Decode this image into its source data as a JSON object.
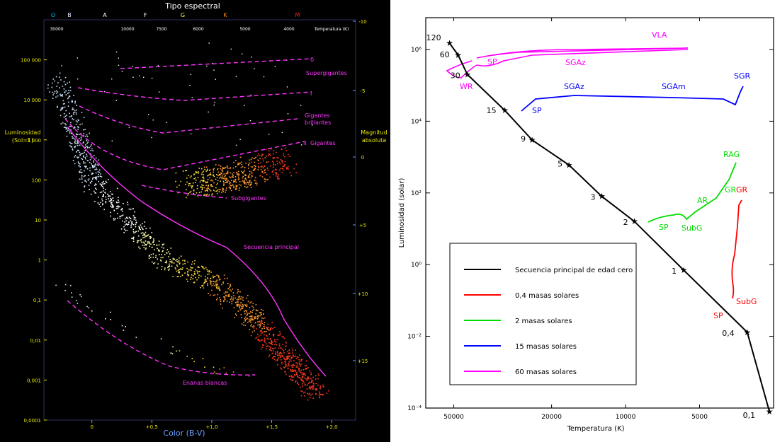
{
  "hr_diagram": {
    "title": "Tipo espectral",
    "spectral_classes": [
      {
        "label": "O",
        "color": "#00bfff"
      },
      {
        "label": "B",
        "color": "#e0e0ff"
      },
      {
        "label": "A",
        "color": "#ffffff"
      },
      {
        "label": "F",
        "color": "#ffffff"
      },
      {
        "label": "G",
        "color": "#ffff40"
      },
      {
        "label": "K",
        "color": "#ff9020"
      },
      {
        "label": "M",
        "color": "#ff2020"
      }
    ],
    "top_temperatures": [
      "30000",
      "10000",
      "7500",
      "6000",
      "5000",
      "4000",
      "3000"
    ],
    "top_temperature_label": "Temperatura (K)",
    "y_left_label_1": "Luminosidad",
    "y_left_label_2": "(Sol=1)",
    "y_left_ticks": [
      "100 000",
      "10 000",
      "1 000",
      "100",
      "10",
      "1",
      "0,1",
      "0,01",
      "0,001",
      "0,0001"
    ],
    "y_right_label_1": "Magnitud",
    "y_right_label_2": "absoluta",
    "y_right_ticks": [
      "-10",
      "-5",
      "0",
      "+5",
      "+10",
      "+15"
    ],
    "x_ticks": [
      "0",
      "+0,5",
      "+1,0",
      "+1,5",
      "+2,0"
    ],
    "x_label": "Color (B-V)",
    "region_labels": {
      "supergiants_0": "0",
      "supergiants_text": "Supergigantes",
      "bright_giants_I": "I",
      "bright_giants_text_1": "Gigantes",
      "bright_giants_text_2": "brillantes",
      "giants_II": "II",
      "giants_text": "Gigantes",
      "subgiants": "Subgigantes",
      "main_sequence": "Secuencia principal",
      "white_dwarfs": "Enanas blancas"
    }
  },
  "chart_data": [
    {
      "type": "scatter",
      "title": "Tipo espectral",
      "xlabel": "Color (B-V)",
      "ylabel": "Luminosidad (Sol=1)",
      "xlim": [
        -0.4,
        2.2
      ],
      "ylim": [
        0.0001,
        1000000
      ],
      "y_scale": "log",
      "series": [
        {
          "name": "Secuencia principal",
          "points": [
            [
              -0.3,
              30000
            ],
            [
              -0.1,
              1000
            ],
            [
              0.0,
              100
            ],
            [
              0.3,
              10
            ],
            [
              0.6,
              1
            ],
            [
              1.0,
              0.3
            ],
            [
              1.3,
              0.05
            ],
            [
              1.5,
              0.01
            ],
            [
              1.7,
              0.002
            ],
            [
              1.9,
              0.0004
            ]
          ]
        },
        {
          "name": "Gigantes",
          "points": [
            [
              0.8,
              80
            ],
            [
              1.0,
              100
            ],
            [
              1.2,
              120
            ],
            [
              1.4,
              200
            ],
            [
              1.6,
              300
            ]
          ]
        },
        {
          "name": "Enanas blancas",
          "points": [
            [
              -0.3,
              0.3
            ],
            [
              0.0,
              0.06
            ],
            [
              0.5,
              0.01
            ],
            [
              1.0,
              0.002
            ],
            [
              1.3,
              0.001
            ]
          ]
        }
      ]
    },
    {
      "type": "line",
      "title": "",
      "xlabel": "Temperatura (K)",
      "ylabel": "Luminosidad (solar)",
      "x_scale": "log",
      "y_scale": "log",
      "xlim": [
        65000,
        2500
      ],
      "ylim": [
        0.0001,
        1000000
      ],
      "x_ticks": [
        "50000",
        "20000",
        "10000",
        "5000"
      ],
      "y_ticks": [
        "10⁶",
        "10⁴",
        "10²",
        "10⁰",
        "10⁻²",
        "10⁻⁴"
      ],
      "legend_position": "bottom-left",
      "legend": [
        {
          "name": "Secuencia principal de edad cero",
          "color": "#000000"
        },
        {
          "name": "0,4 masas solares",
          "color": "#ff0000"
        },
        {
          "name": "2 masas solares",
          "color": "#00dd00"
        },
        {
          "name": "15 masas solares",
          "color": "#0000ff"
        },
        {
          "name": "60 masas solares",
          "color": "#ff00ff"
        }
      ],
      "zams_star_labels": [
        {
          "label": "120",
          "T": 52000,
          "L": 1500000
        },
        {
          "label": "60",
          "T": 48000,
          "L": 700000
        },
        {
          "label": "30",
          "T": 44000,
          "L": 200000
        },
        {
          "label": "15",
          "T": 31000,
          "L": 20000
        },
        {
          "label": "9",
          "T": 24000,
          "L": 3000
        },
        {
          "label": "5",
          "T": 17000,
          "L": 600
        },
        {
          "label": "3",
          "T": 12500,
          "L": 80
        },
        {
          "label": "2",
          "T": 9200,
          "L": 16
        },
        {
          "label": "1",
          "T": 5800,
          "L": 0.7
        },
        {
          "label": "0,4",
          "T": 3200,
          "L": 0.013
        },
        {
          "label": "0,1",
          "T": 2600,
          "L": 8e-05
        }
      ],
      "phase_labels": {
        "magenta": [
          "VLA",
          "SP",
          "SGAz",
          "WR"
        ],
        "blue": [
          "SGAz",
          "SGAm",
          "SGR",
          "SP"
        ],
        "green": [
          "RAG",
          "GR",
          "AR",
          "SP",
          "SubG"
        ],
        "red": [
          "GR",
          "SubG",
          "SP"
        ]
      }
    }
  ]
}
